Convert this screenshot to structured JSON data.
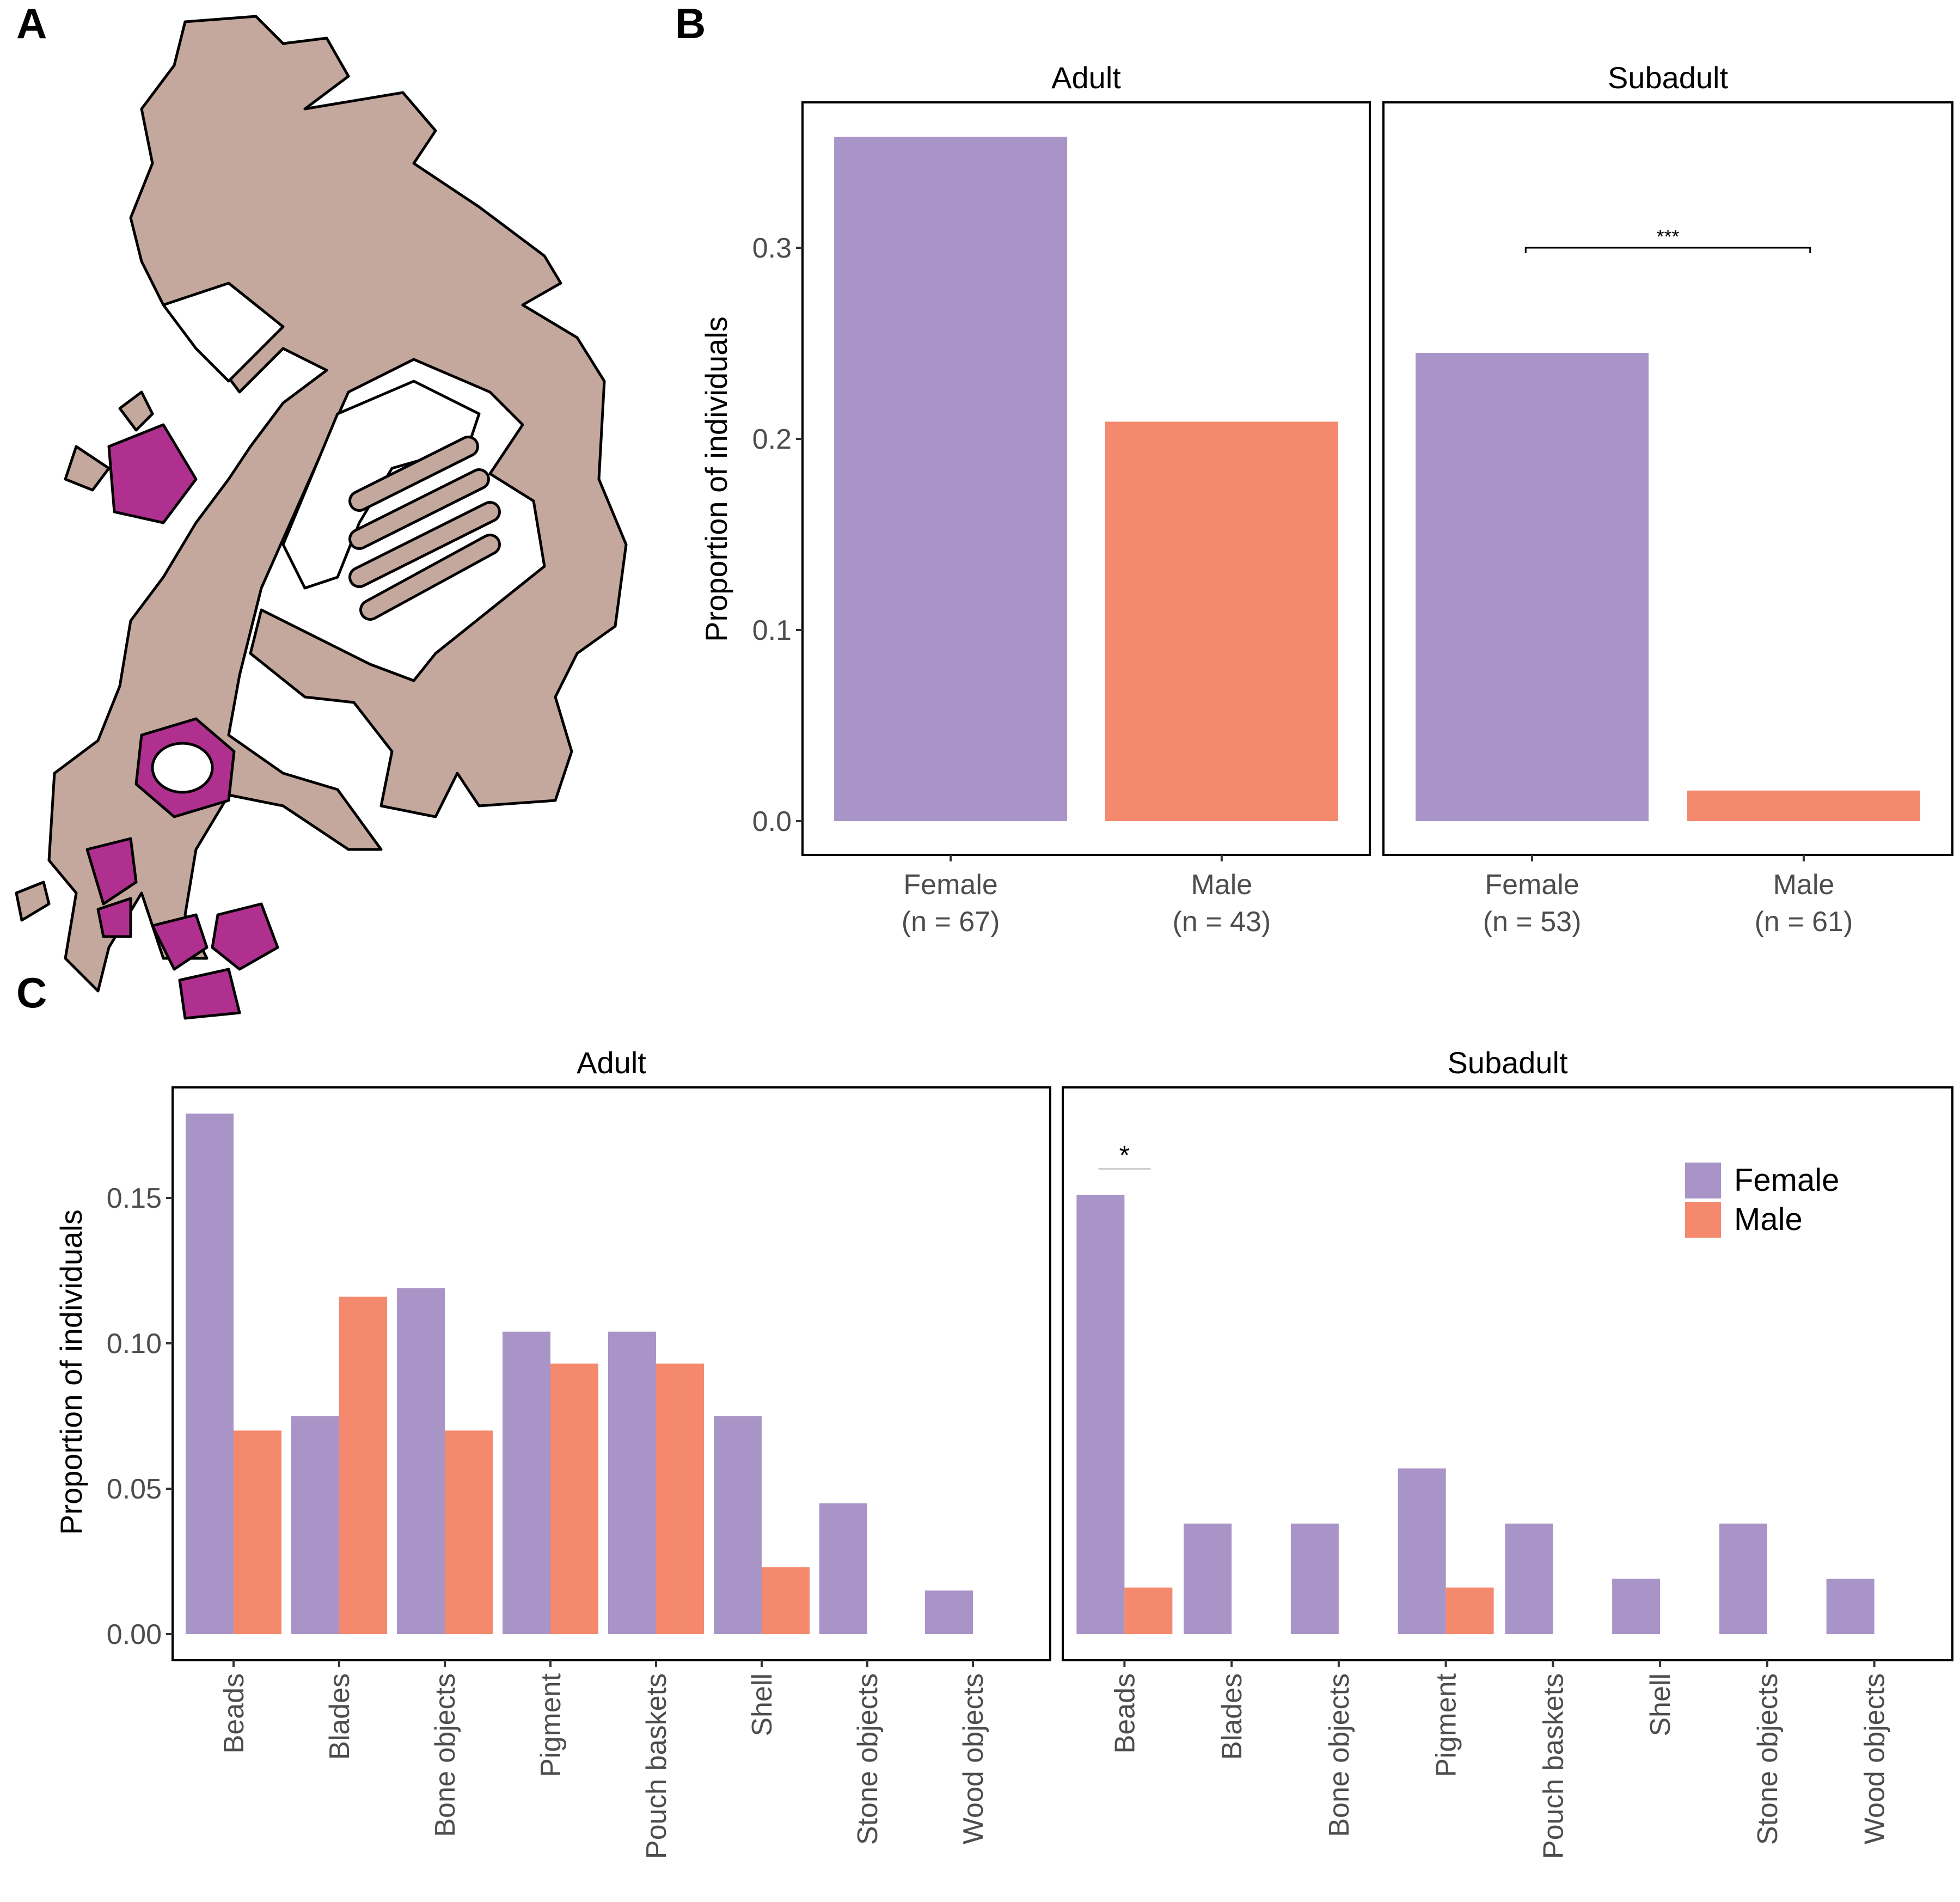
{
  "panel_labels": {
    "a": "A",
    "b": "B",
    "c": "C"
  },
  "colors": {
    "female": "#a994c7",
    "male": "#f4896d",
    "bone": "#c4a89e",
    "ornament": "#b0308f"
  },
  "chart_data": [
    {
      "id": "B",
      "type": "bar",
      "ylabel": "Proportion of individuals",
      "ylim": [
        0,
        0.37
      ],
      "yticks": [
        "0.0",
        "0.1",
        "0.2",
        "0.3"
      ],
      "ytick_values": [
        0,
        0.1,
        0.2,
        0.3
      ],
      "legend": "none",
      "grid": false,
      "facets": [
        {
          "title": "Adult",
          "categories": [
            "Female",
            "Male"
          ],
          "sublabels": [
            "(n = 67)",
            "(n = 43)"
          ],
          "values": [
            0.358,
            0.209
          ],
          "significance": null
        },
        {
          "title": "Subadult",
          "categories": [
            "Female",
            "Male"
          ],
          "sublabels": [
            "(n = 53)",
            "(n = 61)"
          ],
          "values": [
            0.245,
            0.016
          ],
          "significance": {
            "label": "***",
            "between": [
              "Female",
              "Male"
            ],
            "y": 0.3
          }
        }
      ]
    },
    {
      "id": "C",
      "type": "bar",
      "ylabel": "Proportion of individuals",
      "ylim": [
        0,
        0.185
      ],
      "yticks": [
        "0.00",
        "0.05",
        "0.10",
        "0.15"
      ],
      "ytick_values": [
        0,
        0.05,
        0.1,
        0.15
      ],
      "legend": "top-right",
      "grid": false,
      "series_names": [
        "Female",
        "Male"
      ],
      "categories": [
        "Beads",
        "Blades",
        "Bone objects",
        "Pigment",
        "Pouch baskets",
        "Shell",
        "Stone objects",
        "Wood objects"
      ],
      "facets": [
        {
          "title": "Adult",
          "series": [
            {
              "name": "Female",
              "values": [
                0.179,
                0.075,
                0.119,
                0.104,
                0.104,
                0.075,
                0.045,
                0.015
              ]
            },
            {
              "name": "Male",
              "values": [
                0.07,
                0.116,
                0.07,
                0.093,
                0.093,
                0.023,
                0,
                0
              ]
            }
          ],
          "significance": null
        },
        {
          "title": "Subadult",
          "series": [
            {
              "name": "Female",
              "values": [
                0.151,
                0.038,
                0.038,
                0.057,
                0.038,
                0.019,
                0.038,
                0.019
              ]
            },
            {
              "name": "Male",
              "values": [
                0.016,
                0,
                0,
                0.016,
                0,
                0,
                0,
                0
              ]
            }
          ],
          "significance": {
            "label": "*",
            "category": "Beads",
            "y": 0.16
          }
        }
      ]
    }
  ]
}
